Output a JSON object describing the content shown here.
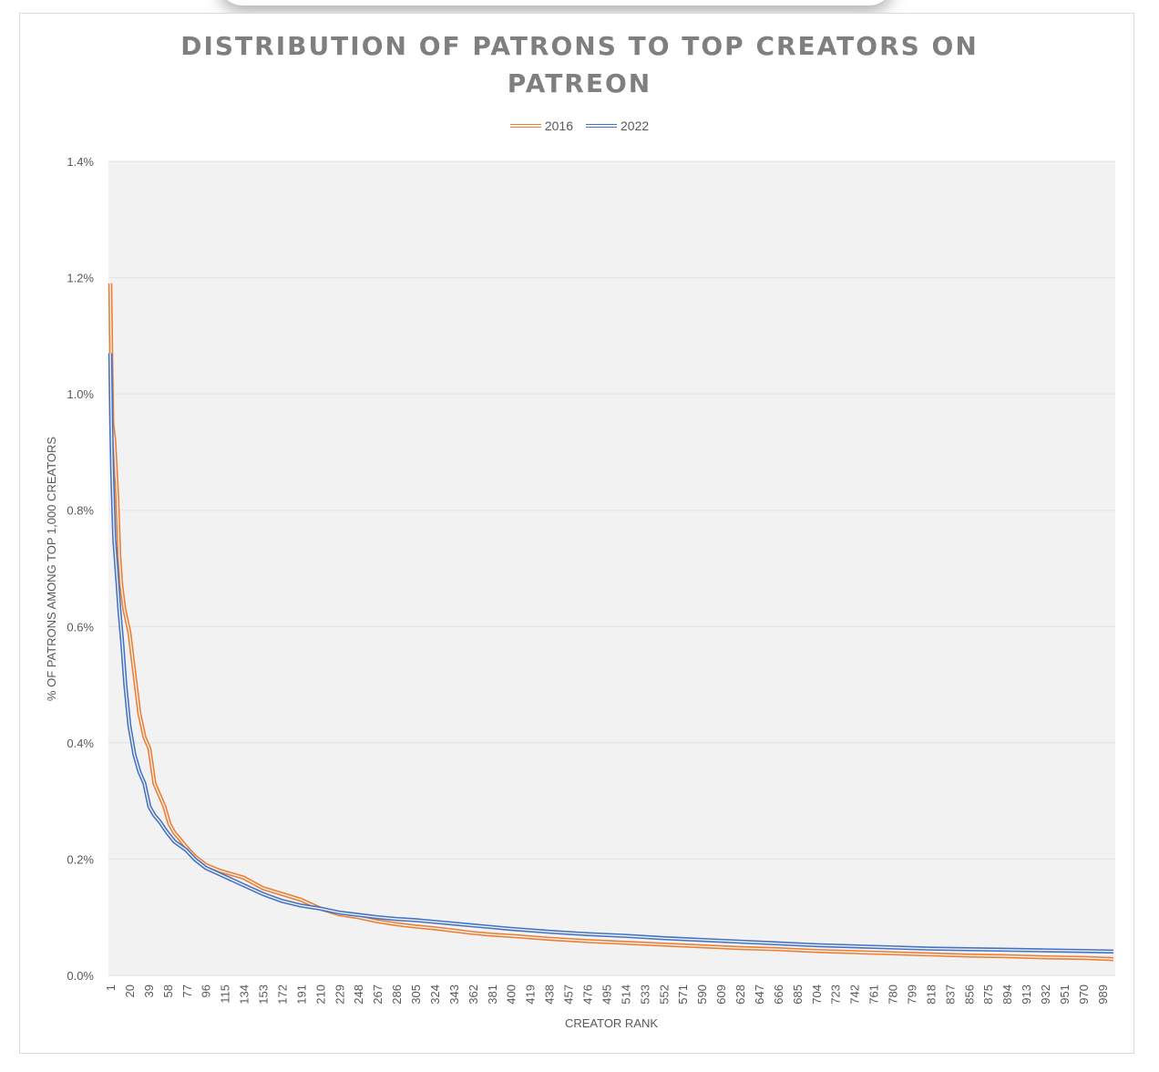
{
  "chart_data": {
    "type": "line",
    "title_lines": [
      "DISTRIBUTION OF PATRONS TO TOP CREATORS ON",
      "PATREON"
    ],
    "xlabel": "CREATOR RANK",
    "ylabel": "% OF PATRONS AMONG TOP 1,000 CREATORS",
    "ylim": [
      0,
      1.4
    ],
    "y_ticks": [
      "0.0%",
      "0.2%",
      "0.4%",
      "0.6%",
      "0.8%",
      "1.0%",
      "1.2%",
      "1.4%"
    ],
    "x_ticks": [
      "1",
      "20",
      "39",
      "58",
      "77",
      "96",
      "115",
      "134",
      "153",
      "172",
      "191",
      "210",
      "229",
      "248",
      "267",
      "286",
      "305",
      "324",
      "343",
      "362",
      "381",
      "400",
      "419",
      "438",
      "457",
      "476",
      "495",
      "514",
      "533",
      "552",
      "571",
      "590",
      "609",
      "628",
      "647",
      "666",
      "685",
      "704",
      "723",
      "742",
      "761",
      "780",
      "799",
      "818",
      "837",
      "856",
      "875",
      "894",
      "913",
      "932",
      "951",
      "970",
      "989"
    ],
    "grid": true,
    "legend_position": "top",
    "series": [
      {
        "name": "2016",
        "color": "#ed7d31",
        "points": [
          [
            1,
            1.19
          ],
          [
            2,
            1.06
          ],
          [
            3,
            0.95
          ],
          [
            5,
            0.92
          ],
          [
            8,
            0.82
          ],
          [
            10,
            0.72
          ],
          [
            12,
            0.67
          ],
          [
            15,
            0.63
          ],
          [
            20,
            0.59
          ],
          [
            25,
            0.52
          ],
          [
            30,
            0.45
          ],
          [
            35,
            0.41
          ],
          [
            40,
            0.39
          ],
          [
            45,
            0.33
          ],
          [
            50,
            0.31
          ],
          [
            55,
            0.29
          ],
          [
            60,
            0.26
          ],
          [
            65,
            0.245
          ],
          [
            70,
            0.235
          ],
          [
            77,
            0.22
          ],
          [
            85,
            0.205
          ],
          [
            96,
            0.19
          ],
          [
            110,
            0.18
          ],
          [
            134,
            0.168
          ],
          [
            153,
            0.15
          ],
          [
            172,
            0.14
          ],
          [
            191,
            0.13
          ],
          [
            210,
            0.115
          ],
          [
            229,
            0.105
          ],
          [
            248,
            0.1
          ],
          [
            267,
            0.093
          ],
          [
            286,
            0.088
          ],
          [
            305,
            0.084
          ],
          [
            324,
            0.081
          ],
          [
            343,
            0.077
          ],
          [
            362,
            0.073
          ],
          [
            381,
            0.07
          ],
          [
            400,
            0.068
          ],
          [
            438,
            0.063
          ],
          [
            476,
            0.059
          ],
          [
            514,
            0.056
          ],
          [
            552,
            0.053
          ],
          [
            590,
            0.05
          ],
          [
            628,
            0.047
          ],
          [
            666,
            0.045
          ],
          [
            704,
            0.042
          ],
          [
            742,
            0.04
          ],
          [
            780,
            0.038
          ],
          [
            818,
            0.036
          ],
          [
            856,
            0.034
          ],
          [
            894,
            0.033
          ],
          [
            932,
            0.031
          ],
          [
            970,
            0.03
          ],
          [
            1000,
            0.028
          ]
        ]
      },
      {
        "name": "2022",
        "color": "#4472c4",
        "points": [
          [
            1,
            1.07
          ],
          [
            2,
            0.95
          ],
          [
            3,
            0.86
          ],
          [
            5,
            0.75
          ],
          [
            8,
            0.68
          ],
          [
            10,
            0.63
          ],
          [
            13,
            0.57
          ],
          [
            16,
            0.5
          ],
          [
            20,
            0.43
          ],
          [
            25,
            0.38
          ],
          [
            30,
            0.35
          ],
          [
            35,
            0.33
          ],
          [
            40,
            0.29
          ],
          [
            45,
            0.275
          ],
          [
            50,
            0.265
          ],
          [
            58,
            0.245
          ],
          [
            65,
            0.23
          ],
          [
            77,
            0.215
          ],
          [
            85,
            0.2
          ],
          [
            96,
            0.185
          ],
          [
            115,
            0.17
          ],
          [
            134,
            0.155
          ],
          [
            153,
            0.14
          ],
          [
            172,
            0.128
          ],
          [
            191,
            0.12
          ],
          [
            210,
            0.115
          ],
          [
            229,
            0.108
          ],
          [
            248,
            0.104
          ],
          [
            267,
            0.1
          ],
          [
            286,
            0.097
          ],
          [
            305,
            0.095
          ],
          [
            324,
            0.092
          ],
          [
            343,
            0.089
          ],
          [
            362,
            0.086
          ],
          [
            381,
            0.083
          ],
          [
            400,
            0.08
          ],
          [
            438,
            0.075
          ],
          [
            476,
            0.071
          ],
          [
            514,
            0.068
          ],
          [
            552,
            0.064
          ],
          [
            590,
            0.061
          ],
          [
            628,
            0.058
          ],
          [
            666,
            0.055
          ],
          [
            704,
            0.052
          ],
          [
            742,
            0.05
          ],
          [
            780,
            0.048
          ],
          [
            818,
            0.046
          ],
          [
            856,
            0.045
          ],
          [
            894,
            0.044
          ],
          [
            932,
            0.043
          ],
          [
            970,
            0.042
          ],
          [
            1000,
            0.041
          ]
        ]
      }
    ]
  }
}
